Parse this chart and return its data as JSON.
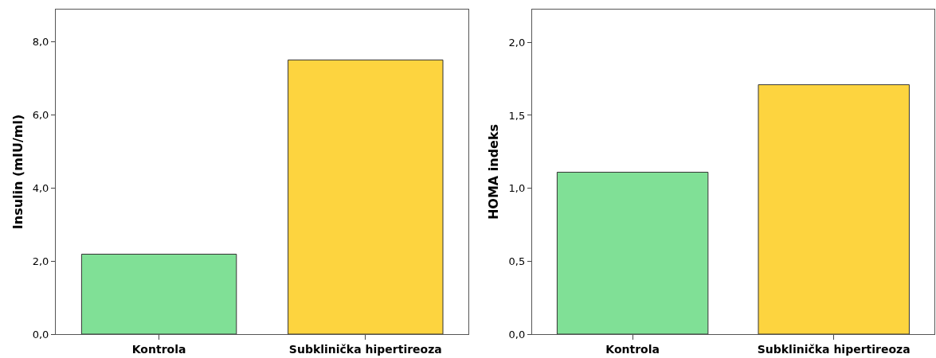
{
  "chart_data": [
    {
      "type": "bar",
      "ylabel": "Insulin (mIU/ml)",
      "categories": [
        "Kontrola",
        "Subklinička hipertireoza"
      ],
      "values": [
        2.19,
        7.51
      ],
      "colors": [
        "#80e096",
        "#fdd43f"
      ],
      "ylim": [
        0,
        8.89
      ],
      "yticks": [
        {
          "value": 0,
          "label": "0,0"
        },
        {
          "value": 2,
          "label": "2,0"
        },
        {
          "value": 4,
          "label": "4,0"
        },
        {
          "value": 6,
          "label": "6,0"
        },
        {
          "value": 8,
          "label": "8,0"
        }
      ]
    },
    {
      "type": "bar",
      "ylabel": "HOMA indeks",
      "categories": [
        "Kontrola",
        "Subklinička hipertireoza"
      ],
      "values": [
        1.11,
        1.71
      ],
      "colors": [
        "#80e096",
        "#fdd43f"
      ],
      "ylim": [
        0,
        2.225
      ],
      "yticks": [
        {
          "value": 0,
          "label": "0,0"
        },
        {
          "value": 0.5,
          "label": "0,5"
        },
        {
          "value": 1,
          "label": "1,0"
        },
        {
          "value": 1.5,
          "label": "1,5"
        },
        {
          "value": 2,
          "label": "2,0"
        }
      ]
    }
  ]
}
